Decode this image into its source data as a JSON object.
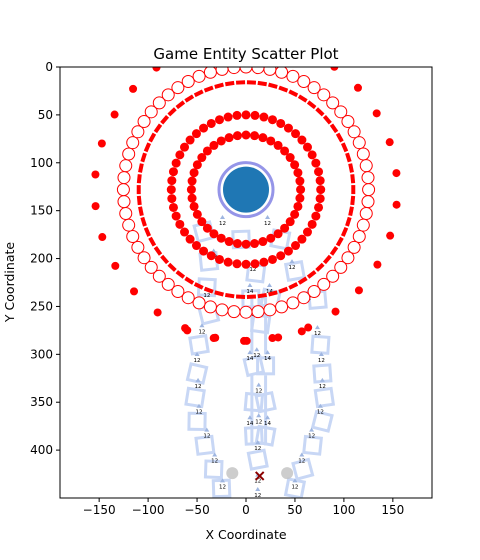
{
  "chart_data": {
    "type": "scatter",
    "title": "Game Entity Scatter Plot",
    "xlabel": "X Coordinate",
    "ylabel": "Y Coordinate",
    "xlim": [
      -190,
      190
    ],
    "ylim": [
      450,
      0
    ],
    "y_inverted": true,
    "x_ticks": [
      -150,
      -100,
      -50,
      0,
      50,
      100,
      150
    ],
    "y_ticks": [
      0,
      50,
      100,
      150,
      200,
      250,
      300,
      350,
      400
    ],
    "grid": false,
    "legend": "none",
    "colors": {
      "red": "#ff0000",
      "blue_marker": "#1f77b4",
      "blue_halo": "#8a8ae6",
      "path_light": "#c8d7f5",
      "label_arrow": "#9fb6e0",
      "dark_red": "#8b0000",
      "grey": "#c0c0c0"
    },
    "center_entity": {
      "x": 0,
      "y": 128
    },
    "rings": [
      {
        "name": "inner_red_1",
        "cx": 0,
        "cy": 128,
        "r": 57,
        "count": 40,
        "marker": "red-dot"
      },
      {
        "name": "inner_red_2",
        "cx": 0,
        "cy": 128,
        "r": 78,
        "count": 52,
        "marker": "red-dot"
      },
      {
        "name": "white_ring",
        "cx": 0,
        "cy": 128,
        "r": 128,
        "count": 64,
        "marker": "white-circle"
      },
      {
        "name": "dash_ring",
        "cx": 0,
        "cy": 128,
        "r": 112,
        "count": 62,
        "marker": "red-dash"
      },
      {
        "name": "outer_red",
        "cx": 0,
        "cy": 128,
        "r": 158,
        "count": 30,
        "marker": "red-dot"
      }
    ],
    "extra_points": [
      {
        "x": -60,
        "y": 275,
        "marker": "red-dot"
      },
      {
        "x": -33,
        "y": 283,
        "marker": "red-dot"
      },
      {
        "x": -2,
        "y": 286,
        "marker": "red-dot"
      },
      {
        "x": 27,
        "y": 283,
        "marker": "red-dot"
      },
      {
        "x": 57,
        "y": 276,
        "marker": "red-dot"
      },
      {
        "x": 14,
        "y": 427,
        "marker": "dark-red-x"
      },
      {
        "x": -14,
        "y": 424,
        "marker": "grey-dot"
      },
      {
        "x": 42,
        "y": 424,
        "marker": "grey-dot"
      }
    ],
    "path_labels": [
      {
        "x": -24,
        "y": 165,
        "t": "12"
      },
      {
        "x": 22,
        "y": 165,
        "t": "12"
      },
      {
        "x": -33,
        "y": 200,
        "t": "12"
      },
      {
        "x": 7,
        "y": 213,
        "t": "12"
      },
      {
        "x": 47,
        "y": 211,
        "t": "12"
      },
      {
        "x": -40,
        "y": 240,
        "t": "12"
      },
      {
        "x": 4,
        "y": 236,
        "t": "14"
      },
      {
        "x": 24,
        "y": 236,
        "t": "14"
      },
      {
        "x": 63,
        "y": 243,
        "t": "12"
      },
      {
        "x": 9,
        "y": 260,
        "t": "12"
      },
      {
        "x": -45,
        "y": 278,
        "t": "12"
      },
      {
        "x": 73,
        "y": 280,
        "t": "12"
      },
      {
        "x": 4,
        "y": 306,
        "t": "14"
      },
      {
        "x": 22,
        "y": 306,
        "t": "14"
      },
      {
        "x": 11,
        "y": 303,
        "t": "12"
      },
      {
        "x": -50,
        "y": 308,
        "t": "12"
      },
      {
        "x": 77,
        "y": 308,
        "t": "12"
      },
      {
        "x": -49,
        "y": 335,
        "t": "12"
      },
      {
        "x": 78,
        "y": 335,
        "t": "12"
      },
      {
        "x": 13,
        "y": 340,
        "t": "12"
      },
      {
        "x": -48,
        "y": 362,
        "t": "12"
      },
      {
        "x": 76,
        "y": 362,
        "t": "12"
      },
      {
        "x": 4,
        "y": 374,
        "t": "14"
      },
      {
        "x": 13,
        "y": 372,
        "t": "12"
      },
      {
        "x": 22,
        "y": 374,
        "t": "14"
      },
      {
        "x": -40,
        "y": 387,
        "t": "12"
      },
      {
        "x": 67,
        "y": 387,
        "t": "12"
      },
      {
        "x": 12,
        "y": 400,
        "t": "12"
      },
      {
        "x": -32,
        "y": 413,
        "t": "12"
      },
      {
        "x": 57,
        "y": 413,
        "t": "12"
      },
      {
        "x": -24,
        "y": 440,
        "t": "12"
      },
      {
        "x": 50,
        "y": 440,
        "t": "12"
      },
      {
        "x": 12,
        "y": 434,
        "t": "12"
      },
      {
        "x": 12,
        "y": 449,
        "t": "12"
      }
    ]
  }
}
